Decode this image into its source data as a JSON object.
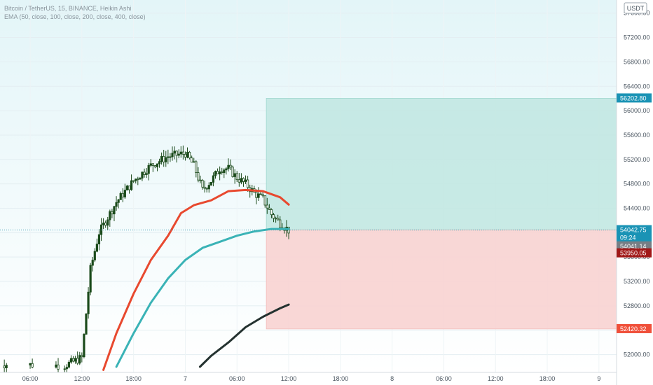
{
  "header": {
    "symbol_line": "Bitcoin / TetherUS, 15, BINANCE, Heikin Ashi",
    "indicator_line": "EMA (50, close, 100, close, 200, close, 400, close)"
  },
  "currency_badge": "USDT",
  "colors": {
    "background": "#eaf7fb",
    "ema_fast": "#e8492f",
    "ema_mid": "#3ab3b6",
    "ema_slow": "#243230",
    "candle": "#1b4a1b",
    "target_zone": "#bfe6e1",
    "stop_zone": "#f8d3d2",
    "target_label": "#1a93b5",
    "stop_label": "#f0503a",
    "entry_label": "#1a93b5",
    "timer_label": "#777e85",
    "red_label": "#a01818"
  },
  "chart_data": {
    "type": "candlestick",
    "y_axis": {
      "range": [
        51800,
        57700
      ],
      "ticks": [
        "57600.00",
        "57200.00",
        "56800.00",
        "56400.00",
        "56000.00",
        "55600.00",
        "55200.00",
        "54800.00",
        "54400.00",
        "54000.00",
        "53600.00",
        "53200.00",
        "52800.00",
        "52400.00",
        "52000.00"
      ]
    },
    "x_axis": {
      "ticks": [
        "06:00",
        "12:00",
        "18:00",
        "7",
        "06:00",
        "12:00",
        "18:00",
        "8",
        "06:00",
        "12:00",
        "18:00",
        "9"
      ],
      "tick_hours": [
        6,
        12,
        18,
        24,
        30,
        36,
        42,
        48,
        54,
        60,
        66,
        72
      ]
    },
    "candle_hours": [
      0,
      36.0
    ],
    "price_levels": {
      "target": {
        "value": 56202.8,
        "label": "56202.80"
      },
      "entry": {
        "value": 54042.75,
        "label": "54042.75",
        "timer": "09:24"
      },
      "current": {
        "value": 54041.14,
        "label": "54041.14"
      },
      "red": {
        "value": 53950.05,
        "label": "53950.05"
      },
      "stop": {
        "value": 52420.32,
        "label": "52420.32"
      }
    },
    "position_zone": {
      "start_hour": 33.4,
      "end_hour": 78
    },
    "ema_lines": [
      {
        "name": "EMA 50",
        "points": [
          [
            14.5,
            51750
          ],
          [
            16,
            52350
          ],
          [
            18,
            53000
          ],
          [
            20,
            53550
          ],
          [
            22,
            53950
          ],
          [
            23.5,
            54320
          ],
          [
            25,
            54450
          ],
          [
            27,
            54530
          ],
          [
            29,
            54680
          ],
          [
            31,
            54700
          ],
          [
            33,
            54680
          ],
          [
            35,
            54580
          ],
          [
            36,
            54460
          ]
        ]
      },
      {
        "name": "EMA 100",
        "points": [
          [
            16,
            51800
          ],
          [
            18,
            52350
          ],
          [
            20,
            52850
          ],
          [
            22,
            53250
          ],
          [
            24,
            53550
          ],
          [
            26,
            53750
          ],
          [
            28,
            53850
          ],
          [
            30,
            53950
          ],
          [
            32,
            54020
          ],
          [
            34,
            54060
          ],
          [
            36,
            54060
          ]
        ]
      },
      {
        "name": "EMA 200",
        "points": [
          [
            25.7,
            51800
          ],
          [
            27,
            51980
          ],
          [
            29,
            52200
          ],
          [
            31,
            52450
          ],
          [
            33,
            52620
          ],
          [
            35,
            52760
          ],
          [
            36,
            52820
          ]
        ]
      }
    ]
  }
}
